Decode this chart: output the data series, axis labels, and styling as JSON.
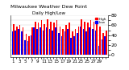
{
  "title": "Milwaukee Weather Dew Point",
  "subtitle": "Daily High/Low",
  "background_color": "#ffffff",
  "num_days": 31,
  "high_values": [
    62,
    58,
    60,
    55,
    42,
    38,
    55,
    68,
    65,
    70,
    62,
    72,
    68,
    65,
    70,
    58,
    52,
    60,
    65,
    48,
    52,
    58,
    72,
    68,
    65,
    70,
    68,
    62,
    58,
    45,
    50
  ],
  "low_values": [
    48,
    50,
    52,
    48,
    30,
    28,
    40,
    55,
    52,
    55,
    50,
    55,
    52,
    50,
    55,
    45,
    38,
    48,
    52,
    35,
    38,
    45,
    58,
    52,
    48,
    55,
    52,
    50,
    18,
    32,
    38
  ],
  "high_color": "#ff0000",
  "low_color": "#0000ff",
  "ylim": [
    -5,
    80
  ],
  "ytick_vals": [
    0,
    10,
    20,
    30,
    40,
    50,
    60,
    70,
    80
  ],
  "ytick_labels": [
    "0",
    "",
    "20",
    "",
    "40",
    "",
    "60",
    "",
    "80"
  ],
  "xtick_labels": [
    "1",
    "",
    "3",
    "",
    "5",
    "",
    "7",
    "",
    "9",
    "",
    "11",
    "",
    "13",
    "",
    "15",
    "",
    "17",
    "",
    "19",
    "",
    "21",
    "",
    "23",
    "",
    "25",
    "",
    "27",
    "",
    "29",
    "",
    ""
  ],
  "legend_high": "High",
  "legend_low": "Low",
  "title_color": "#000000",
  "grid_color": "#cccccc"
}
